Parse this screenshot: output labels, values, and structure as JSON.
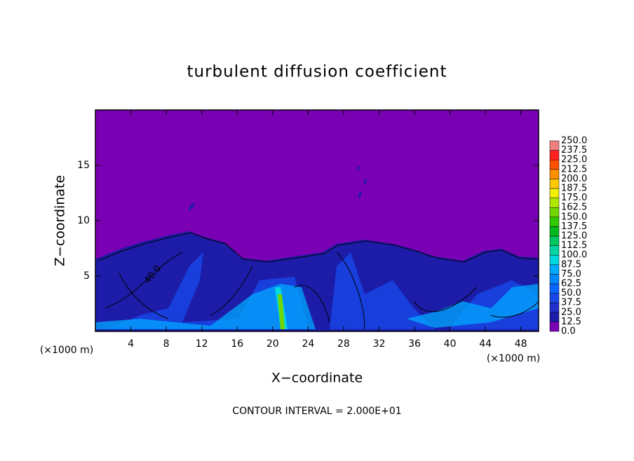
{
  "chart_data": {
    "type": "contour",
    "title": "turbulent diffusion coefficient",
    "x_label": "X−coordinate",
    "y_label": "Z−coordinate",
    "x_unit": "(×1000 m)",
    "y_unit": "(×1000 m)",
    "footnote": "CONTOUR INTERVAL = 2.000E+01",
    "contour_labels": [
      "40.0"
    ],
    "xlim": [
      0,
      50
    ],
    "xticks": [
      4,
      8,
      12,
      16,
      20,
      24,
      28,
      32,
      36,
      40,
      44,
      48
    ],
    "ylim": [
      0,
      20
    ],
    "yticks": [
      5,
      10,
      15
    ],
    "levels": [
      {
        "value": 0,
        "label": "0.0"
      },
      {
        "value": 12.5,
        "label": "12.5"
      },
      {
        "value": 25,
        "label": "25.0"
      },
      {
        "value": 37.5,
        "label": "37.5"
      },
      {
        "value": 50,
        "label": "50.0"
      },
      {
        "value": 62.5,
        "label": "62.5"
      },
      {
        "value": 75,
        "label": "75.0"
      },
      {
        "value": 87.5,
        "label": "87.5"
      },
      {
        "value": 100,
        "label": "100.0"
      },
      {
        "value": 112.5,
        "label": "112.5"
      },
      {
        "value": 125,
        "label": "125.0"
      },
      {
        "value": 137.5,
        "label": "137.5"
      },
      {
        "value": 150,
        "label": "150.0"
      },
      {
        "value": 162.5,
        "label": "162.5"
      },
      {
        "value": 175,
        "label": "175.0"
      },
      {
        "value": 187.5,
        "label": "187.5"
      },
      {
        "value": 200,
        "label": "200.0"
      },
      {
        "value": 212.5,
        "label": "212.5"
      },
      {
        "value": 225,
        "label": "225.0"
      },
      {
        "value": 237.5,
        "label": "237.5"
      },
      {
        "value": 250,
        "label": "250.0"
      }
    ],
    "colors": [
      "#7a00b4",
      "#1c1ca8",
      "#2030c8",
      "#1848e8",
      "#0a64ff",
      "#0088ff",
      "#00aaff",
      "#00d8e0",
      "#00d4a0",
      "#00c860",
      "#00b820",
      "#30c800",
      "#70d800",
      "#b0e800",
      "#f0f000",
      "#ffc800",
      "#ff9000",
      "#ff5000",
      "#ff2020",
      "#f08080"
    ]
  }
}
